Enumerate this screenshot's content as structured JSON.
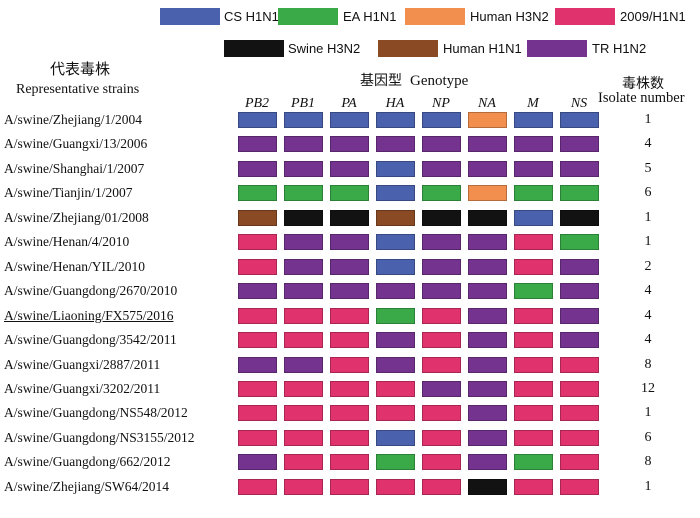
{
  "colors": {
    "cs_h1n1": "#4a62ad",
    "ea_h1n1": "#3aaa48",
    "human_h3n2": "#f28f4f",
    "pdm2009": "#e0336e",
    "swine_h3n2": "#121212",
    "human_h1n1": "#8a4b24",
    "tr_h1n2": "#74338f"
  },
  "legend": [
    {
      "key": "cs_h1n1",
      "label": "CS H1N1"
    },
    {
      "key": "ea_h1n1",
      "label": "EA H1N1"
    },
    {
      "key": "human_h3n2",
      "label": "Human H3N2"
    },
    {
      "key": "pdm2009",
      "label": "2009/H1N1"
    },
    {
      "key": "swine_h3n2",
      "label": "Swine H3N2"
    },
    {
      "key": "human_h1n1",
      "label": "Human H1N1"
    },
    {
      "key": "tr_h1n2",
      "label": "TR H1N2"
    }
  ],
  "headers": {
    "strains_cn": "代表毒株",
    "strains_en": "Representative strains",
    "genotype_cn": "基因型",
    "genotype_en": "Genotype",
    "isolate_cn": "毒株数",
    "isolate_en": "Isolate number"
  },
  "segments": [
    "PB2",
    "PB1",
    "PA",
    "HA",
    "NP",
    "NA",
    "M",
    "NS"
  ],
  "rows": [
    {
      "strain": "A/swine/Zhejiang/1/2004",
      "genotype": [
        "cs_h1n1",
        "cs_h1n1",
        "cs_h1n1",
        "cs_h1n1",
        "cs_h1n1",
        "human_h3n2",
        "cs_h1n1",
        "cs_h1n1"
      ],
      "count": "1"
    },
    {
      "strain": "A/swine/Guangxi/13/2006",
      "genotype": [
        "tr_h1n2",
        "tr_h1n2",
        "tr_h1n2",
        "tr_h1n2",
        "tr_h1n2",
        "tr_h1n2",
        "tr_h1n2",
        "tr_h1n2"
      ],
      "count": "4"
    },
    {
      "strain": "A/swine/Shanghai/1/2007",
      "genotype": [
        "tr_h1n2",
        "tr_h1n2",
        "tr_h1n2",
        "cs_h1n1",
        "tr_h1n2",
        "tr_h1n2",
        "tr_h1n2",
        "tr_h1n2"
      ],
      "count": "5"
    },
    {
      "strain": "A/swine/Tianjin/1/2007",
      "genotype": [
        "ea_h1n1",
        "ea_h1n1",
        "ea_h1n1",
        "cs_h1n1",
        "ea_h1n1",
        "human_h3n2",
        "ea_h1n1",
        "ea_h1n1"
      ],
      "count": "6"
    },
    {
      "strain": "A/swine/Zhejiang/01/2008",
      "genotype": [
        "human_h1n1",
        "swine_h3n2",
        "swine_h3n2",
        "human_h1n1",
        "swine_h3n2",
        "swine_h3n2",
        "cs_h1n1",
        "swine_h3n2"
      ],
      "count": "1"
    },
    {
      "strain": "A/swine/Henan/4/2010",
      "genotype": [
        "pdm2009",
        "tr_h1n2",
        "tr_h1n2",
        "cs_h1n1",
        "tr_h1n2",
        "tr_h1n2",
        "pdm2009",
        "ea_h1n1"
      ],
      "count": "1"
    },
    {
      "strain": "A/swine/Henan/YIL/2010",
      "genotype": [
        "pdm2009",
        "tr_h1n2",
        "tr_h1n2",
        "cs_h1n1",
        "tr_h1n2",
        "tr_h1n2",
        "pdm2009",
        "tr_h1n2"
      ],
      "count": "2"
    },
    {
      "strain": "A/swine/Guangdong/2670/2010",
      "genotype": [
        "tr_h1n2",
        "tr_h1n2",
        "tr_h1n2",
        "tr_h1n2",
        "tr_h1n2",
        "tr_h1n2",
        "ea_h1n1",
        "tr_h1n2"
      ],
      "count": "4"
    },
    {
      "strain": "A/swine/Liaoning/FX575/2016",
      "genotype": [
        "pdm2009",
        "pdm2009",
        "pdm2009",
        "ea_h1n1",
        "pdm2009",
        "tr_h1n2",
        "pdm2009",
        "tr_h1n2"
      ],
      "count": "4"
    },
    {
      "strain": "A/swine/Guangdong/3542/2011",
      "genotype": [
        "pdm2009",
        "pdm2009",
        "pdm2009",
        "tr_h1n2",
        "pdm2009",
        "tr_h1n2",
        "pdm2009",
        "tr_h1n2"
      ],
      "count": "4"
    },
    {
      "strain": "A/swine/Guangxi/2887/2011",
      "genotype": [
        "tr_h1n2",
        "tr_h1n2",
        "pdm2009",
        "tr_h1n2",
        "pdm2009",
        "tr_h1n2",
        "pdm2009",
        "pdm2009"
      ],
      "count": "8"
    },
    {
      "strain": "A/swine/Guangxi/3202/2011",
      "genotype": [
        "pdm2009",
        "pdm2009",
        "pdm2009",
        "pdm2009",
        "tr_h1n2",
        "tr_h1n2",
        "pdm2009",
        "pdm2009"
      ],
      "count": "12"
    },
    {
      "strain": "A/swine/Guangdong/NS548/2012",
      "genotype": [
        "pdm2009",
        "pdm2009",
        "pdm2009",
        "pdm2009",
        "pdm2009",
        "tr_h1n2",
        "pdm2009",
        "pdm2009"
      ],
      "count": "1"
    },
    {
      "strain": "A/swine/Guangdong/NS3155/2012",
      "genotype": [
        "pdm2009",
        "pdm2009",
        "pdm2009",
        "cs_h1n1",
        "pdm2009",
        "tr_h1n2",
        "pdm2009",
        "pdm2009"
      ],
      "count": "6"
    },
    {
      "strain": "A/swine/Guangdong/662/2012",
      "genotype": [
        "tr_h1n2",
        "pdm2009",
        "pdm2009",
        "ea_h1n1",
        "pdm2009",
        "tr_h1n2",
        "ea_h1n1",
        "pdm2009"
      ],
      "count": "8"
    },
    {
      "strain": "A/swine/Zhejiang/SW64/2014",
      "genotype": [
        "pdm2009",
        "pdm2009",
        "pdm2009",
        "pdm2009",
        "pdm2009",
        "swine_h3n2",
        "pdm2009",
        "pdm2009"
      ],
      "count": "1"
    }
  ]
}
